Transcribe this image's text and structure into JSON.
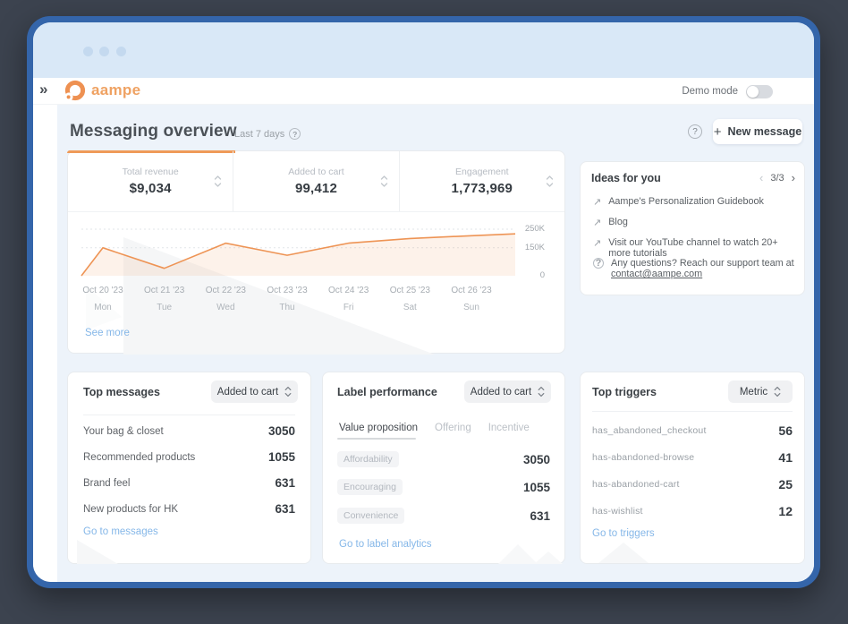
{
  "icons": {
    "collapse": "»",
    "external_link": "↗",
    "help": "?",
    "prev": "‹",
    "next": "›",
    "plus": "+"
  },
  "brand": {
    "name": "aampe",
    "accent_orange": "#EE9455",
    "frame_blue": "#3465AA",
    "link_blue": "#85B7E8"
  },
  "topbar": {
    "demo_mode_label": "Demo mode",
    "demo_mode_state": "off"
  },
  "header": {
    "title": "Messaging overview",
    "range_label": "Last 7 days",
    "new_message_label": "New message"
  },
  "stats": {
    "cards": [
      {
        "label": "Total revenue",
        "value": "$9,034",
        "active": true
      },
      {
        "label": "Added to cart",
        "value": "99,412",
        "active": false
      },
      {
        "label": "Engagement",
        "value": "1,773,969",
        "active": false
      }
    ]
  },
  "chart_data": {
    "type": "area",
    "x": [
      "Oct 20 '23",
      "Oct 21 '23",
      "Oct 22 '23",
      "Oct 23 '23",
      "Oct 24 '23",
      "Oct 25 '23",
      "Oct 26 '23"
    ],
    "x_sub": [
      "Mon",
      "Tue",
      "Wed",
      "Thu",
      "Fri",
      "Sat",
      "Sun"
    ],
    "values": [
      150000,
      40000,
      175000,
      110000,
      175000,
      200000,
      215000
    ],
    "leading_edge_value": 0,
    "trailing_edge_value": 225000,
    "y_ticks": [
      "250K",
      "150K",
      "0"
    ],
    "y_tick_values": [
      250000,
      150000,
      0
    ],
    "ylim": [
      0,
      250000
    ],
    "line_color": "#EE9455",
    "fill_opacity": 0.12,
    "grid": "dotted horizontal",
    "legend": "none",
    "see_more_label": "See more"
  },
  "ideas": {
    "title": "Ideas for you",
    "pagination": "3/3",
    "items": [
      {
        "text": "Aampe's Personalization Guidebook"
      },
      {
        "text": "Blog"
      },
      {
        "text": "Visit our YouTube channel to watch 20+ more tutorials"
      },
      {
        "text": "Any questions? Reach our support team at",
        "link": "contact@aampe.com"
      }
    ]
  },
  "top_messages": {
    "title": "Top messages",
    "filter_value": "Added to cart",
    "rows": [
      {
        "name": "Your bag & closet",
        "value": "3050"
      },
      {
        "name": "Recommended products",
        "value": "1055"
      },
      {
        "name": "Brand feel",
        "value": "631"
      },
      {
        "name": "New products for HK",
        "value": "631"
      }
    ],
    "link_label": "Go to messages"
  },
  "label_performance": {
    "title": "Label performance",
    "filter_value": "Added to cart",
    "tabs": [
      {
        "label": "Value proposition",
        "active": true
      },
      {
        "label": "Offering",
        "active": false
      },
      {
        "label": "Incentive",
        "active": false
      }
    ],
    "rows": [
      {
        "name": "Affordability",
        "value": "3050"
      },
      {
        "name": "Encouraging",
        "value": "1055"
      },
      {
        "name": "Convenience",
        "value": "631"
      }
    ],
    "link_label": "Go to label analytics"
  },
  "top_triggers": {
    "title": "Top triggers",
    "filter_value": "Metric",
    "rows": [
      {
        "name": "has_abandoned_checkout",
        "value": "56"
      },
      {
        "name": "has-abandoned-browse",
        "value": "41"
      },
      {
        "name": "has-abandoned-cart",
        "value": "25"
      },
      {
        "name": "has-wishlist",
        "value": "12"
      }
    ],
    "link_label": "Go to triggers"
  }
}
